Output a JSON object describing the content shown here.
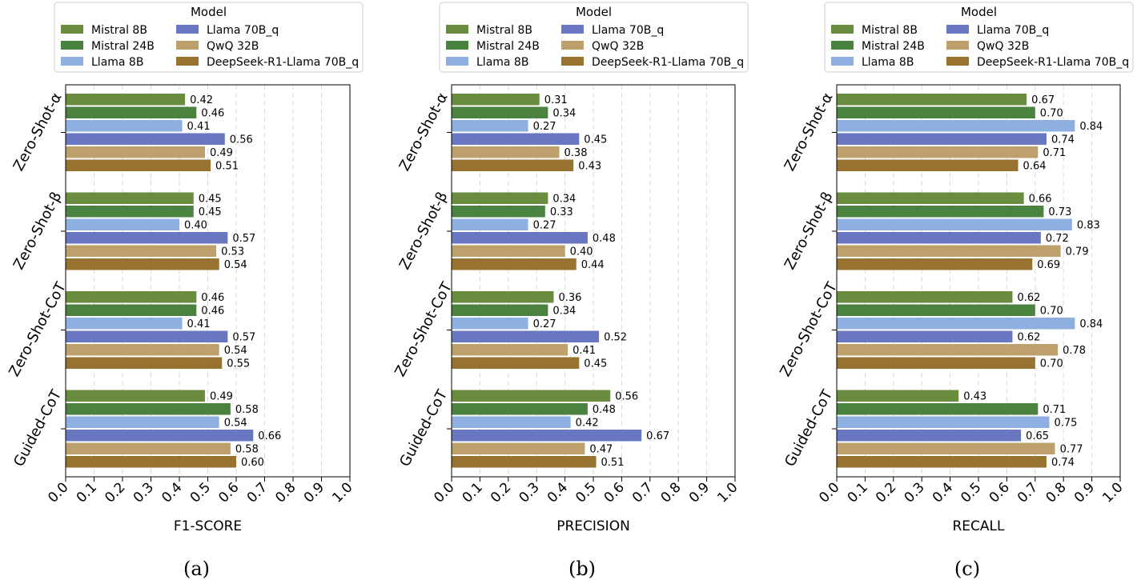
{
  "chart_data": [
    {
      "type": "bar",
      "orientation": "horizontal",
      "caption": "(a)",
      "xlabel": "F1-SCORE",
      "xlim": [
        0.0,
        1.0
      ],
      "xticks": [
        "0.0",
        "0.1",
        "0.2",
        "0.3",
        "0.4",
        "0.5",
        "0.6",
        "0.7",
        "0.8",
        "0.9",
        "1.0"
      ],
      "grid": "vertical dashed",
      "legend_title": "Model",
      "legend_position": "top",
      "categories": [
        "Zero-Shot-α",
        "Zero-Shot-β",
        "Zero-Shot-CoT",
        "Guided-CoT"
      ],
      "series": [
        {
          "name": "Mistral 8B",
          "values": [
            0.42,
            0.45,
            0.46,
            0.49
          ]
        },
        {
          "name": "Mistral 24B",
          "values": [
            0.46,
            0.45,
            0.46,
            0.58
          ]
        },
        {
          "name": "Llama 8B",
          "values": [
            0.41,
            0.4,
            0.41,
            0.54
          ]
        },
        {
          "name": "Llama 70B_q",
          "values": [
            0.56,
            0.57,
            0.57,
            0.66
          ]
        },
        {
          "name": "QwQ 32B",
          "values": [
            0.49,
            0.53,
            0.54,
            0.58
          ]
        },
        {
          "name": "DeepSeek-R1-Llama 70B_q",
          "values": [
            0.51,
            0.54,
            0.55,
            0.6
          ]
        }
      ]
    },
    {
      "type": "bar",
      "orientation": "horizontal",
      "caption": "(b)",
      "xlabel": "PRECISION",
      "xlim": [
        0.0,
        1.0
      ],
      "xticks": [
        "0.0",
        "0.1",
        "0.2",
        "0.3",
        "0.4",
        "0.5",
        "0.6",
        "0.7",
        "0.8",
        "0.9",
        "1.0"
      ],
      "grid": "vertical dashed",
      "legend_title": "Model",
      "legend_position": "top",
      "categories": [
        "Zero-Shot-α",
        "Zero-Shot-β",
        "Zero-Shot-CoT",
        "Guided-CoT"
      ],
      "series": [
        {
          "name": "Mistral 8B",
          "values": [
            0.31,
            0.34,
            0.36,
            0.56
          ]
        },
        {
          "name": "Mistral 24B",
          "values": [
            0.34,
            0.33,
            0.34,
            0.48
          ]
        },
        {
          "name": "Llama 8B",
          "values": [
            0.27,
            0.27,
            0.27,
            0.42
          ]
        },
        {
          "name": "Llama 70B_q",
          "values": [
            0.45,
            0.48,
            0.52,
            0.67
          ]
        },
        {
          "name": "QwQ 32B",
          "values": [
            0.38,
            0.4,
            0.41,
            0.47
          ]
        },
        {
          "name": "DeepSeek-R1-Llama 70B_q",
          "values": [
            0.43,
            0.44,
            0.45,
            0.51
          ]
        }
      ]
    },
    {
      "type": "bar",
      "orientation": "horizontal",
      "caption": "(c)",
      "xlabel": "RECALL",
      "xlim": [
        0.0,
        1.0
      ],
      "xticks": [
        "0.0",
        "0.1",
        "0.2",
        "0.3",
        "0.4",
        "0.5",
        "0.6",
        "0.7",
        "0.8",
        "0.9",
        "1.0"
      ],
      "grid": "vertical dashed",
      "legend_title": "Model",
      "legend_position": "top",
      "categories": [
        "Zero-Shot-α",
        "Zero-Shot-β",
        "Zero-Shot-CoT",
        "Guided-CoT"
      ],
      "series": [
        {
          "name": "Mistral 8B",
          "values": [
            0.67,
            0.66,
            0.62,
            0.43
          ]
        },
        {
          "name": "Mistral 24B",
          "values": [
            0.7,
            0.73,
            0.7,
            0.71
          ]
        },
        {
          "name": "Llama 8B",
          "values": [
            0.84,
            0.83,
            0.84,
            0.75
          ]
        },
        {
          "name": "Llama 70B_q",
          "values": [
            0.74,
            0.72,
            0.62,
            0.65
          ]
        },
        {
          "name": "QwQ 32B",
          "values": [
            0.71,
            0.79,
            0.78,
            0.77
          ]
        },
        {
          "name": "DeepSeek-R1-Llama 70B_q",
          "values": [
            0.64,
            0.69,
            0.7,
            0.74
          ]
        }
      ]
    }
  ],
  "colors": {
    "Mistral 8B": "#6a8c3f",
    "Mistral 24B": "#4a8240",
    "Llama 8B": "#8eb0e0",
    "Llama 70B_q": "#6877c0",
    "QwQ 32B": "#bda06c",
    "DeepSeek-R1-Llama 70B_q": "#987230"
  }
}
